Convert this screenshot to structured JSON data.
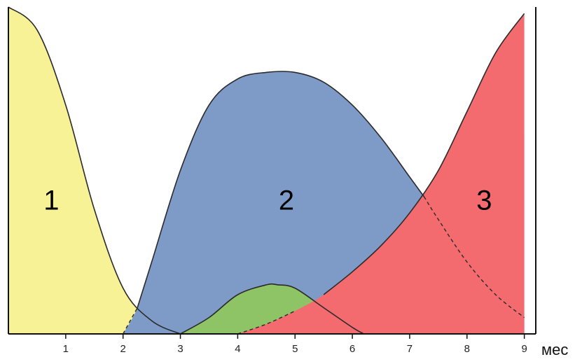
{
  "chart_data": {
    "type": "area",
    "title": "",
    "xlabel": "мес",
    "ylabel": "",
    "xlim": [
      0,
      9.2
    ],
    "ylim": [
      0,
      1
    ],
    "grid": false,
    "ticks": [
      1,
      2,
      3,
      4,
      5,
      6,
      7,
      8,
      9
    ],
    "tick_labels": [
      "1",
      "2",
      "3",
      "4",
      "5",
      "6",
      "7",
      "8",
      "9"
    ],
    "region_labels": [
      {
        "text": "1",
        "x": 0.75,
        "y": 0.38
      },
      {
        "text": "2",
        "x": 4.85,
        "y": 0.38
      },
      {
        "text": "3",
        "x": 8.3,
        "y": 0.38
      }
    ],
    "series": [
      {
        "color": "#f8f296",
        "x": [
          0,
          0.5,
          1,
          1.5,
          2,
          2.5,
          3
        ],
        "y": [
          1.0,
          0.93,
          0.7,
          0.38,
          0.14,
          0.04,
          0.0
        ]
      },
      {
        "color": "#7e9bc8",
        "x": [
          2,
          2.25,
          2.5,
          3,
          3.5,
          4,
          4.5,
          5,
          5.5,
          6,
          6.5,
          7,
          7.25,
          7.5,
          8,
          8.5,
          9
        ],
        "y": [
          0.0,
          0.08,
          0.22,
          0.5,
          0.7,
          0.78,
          0.8,
          0.8,
          0.77,
          0.7,
          0.6,
          0.48,
          0.42,
          0.35,
          0.22,
          0.12,
          0.05
        ],
        "dashed_from_x": 7.25,
        "dashed_until_x": 2.25
      },
      {
        "color": "#8ec466",
        "x": [
          3,
          3.5,
          4,
          4.5,
          4.7,
          5,
          5.5,
          6,
          6.2
        ],
        "y": [
          0.0,
          0.05,
          0.12,
          0.15,
          0.15,
          0.14,
          0.08,
          0.02,
          0.0
        ]
      },
      {
        "color": "#f46b6f",
        "x": [
          4,
          4.5,
          5,
          5.5,
          6,
          6.5,
          7,
          7.5,
          8,
          8.5,
          9
        ],
        "y": [
          0.0,
          0.03,
          0.07,
          0.12,
          0.19,
          0.27,
          0.37,
          0.5,
          0.68,
          0.86,
          0.98
        ],
        "dashed_until_x": 5.3
      }
    ]
  }
}
